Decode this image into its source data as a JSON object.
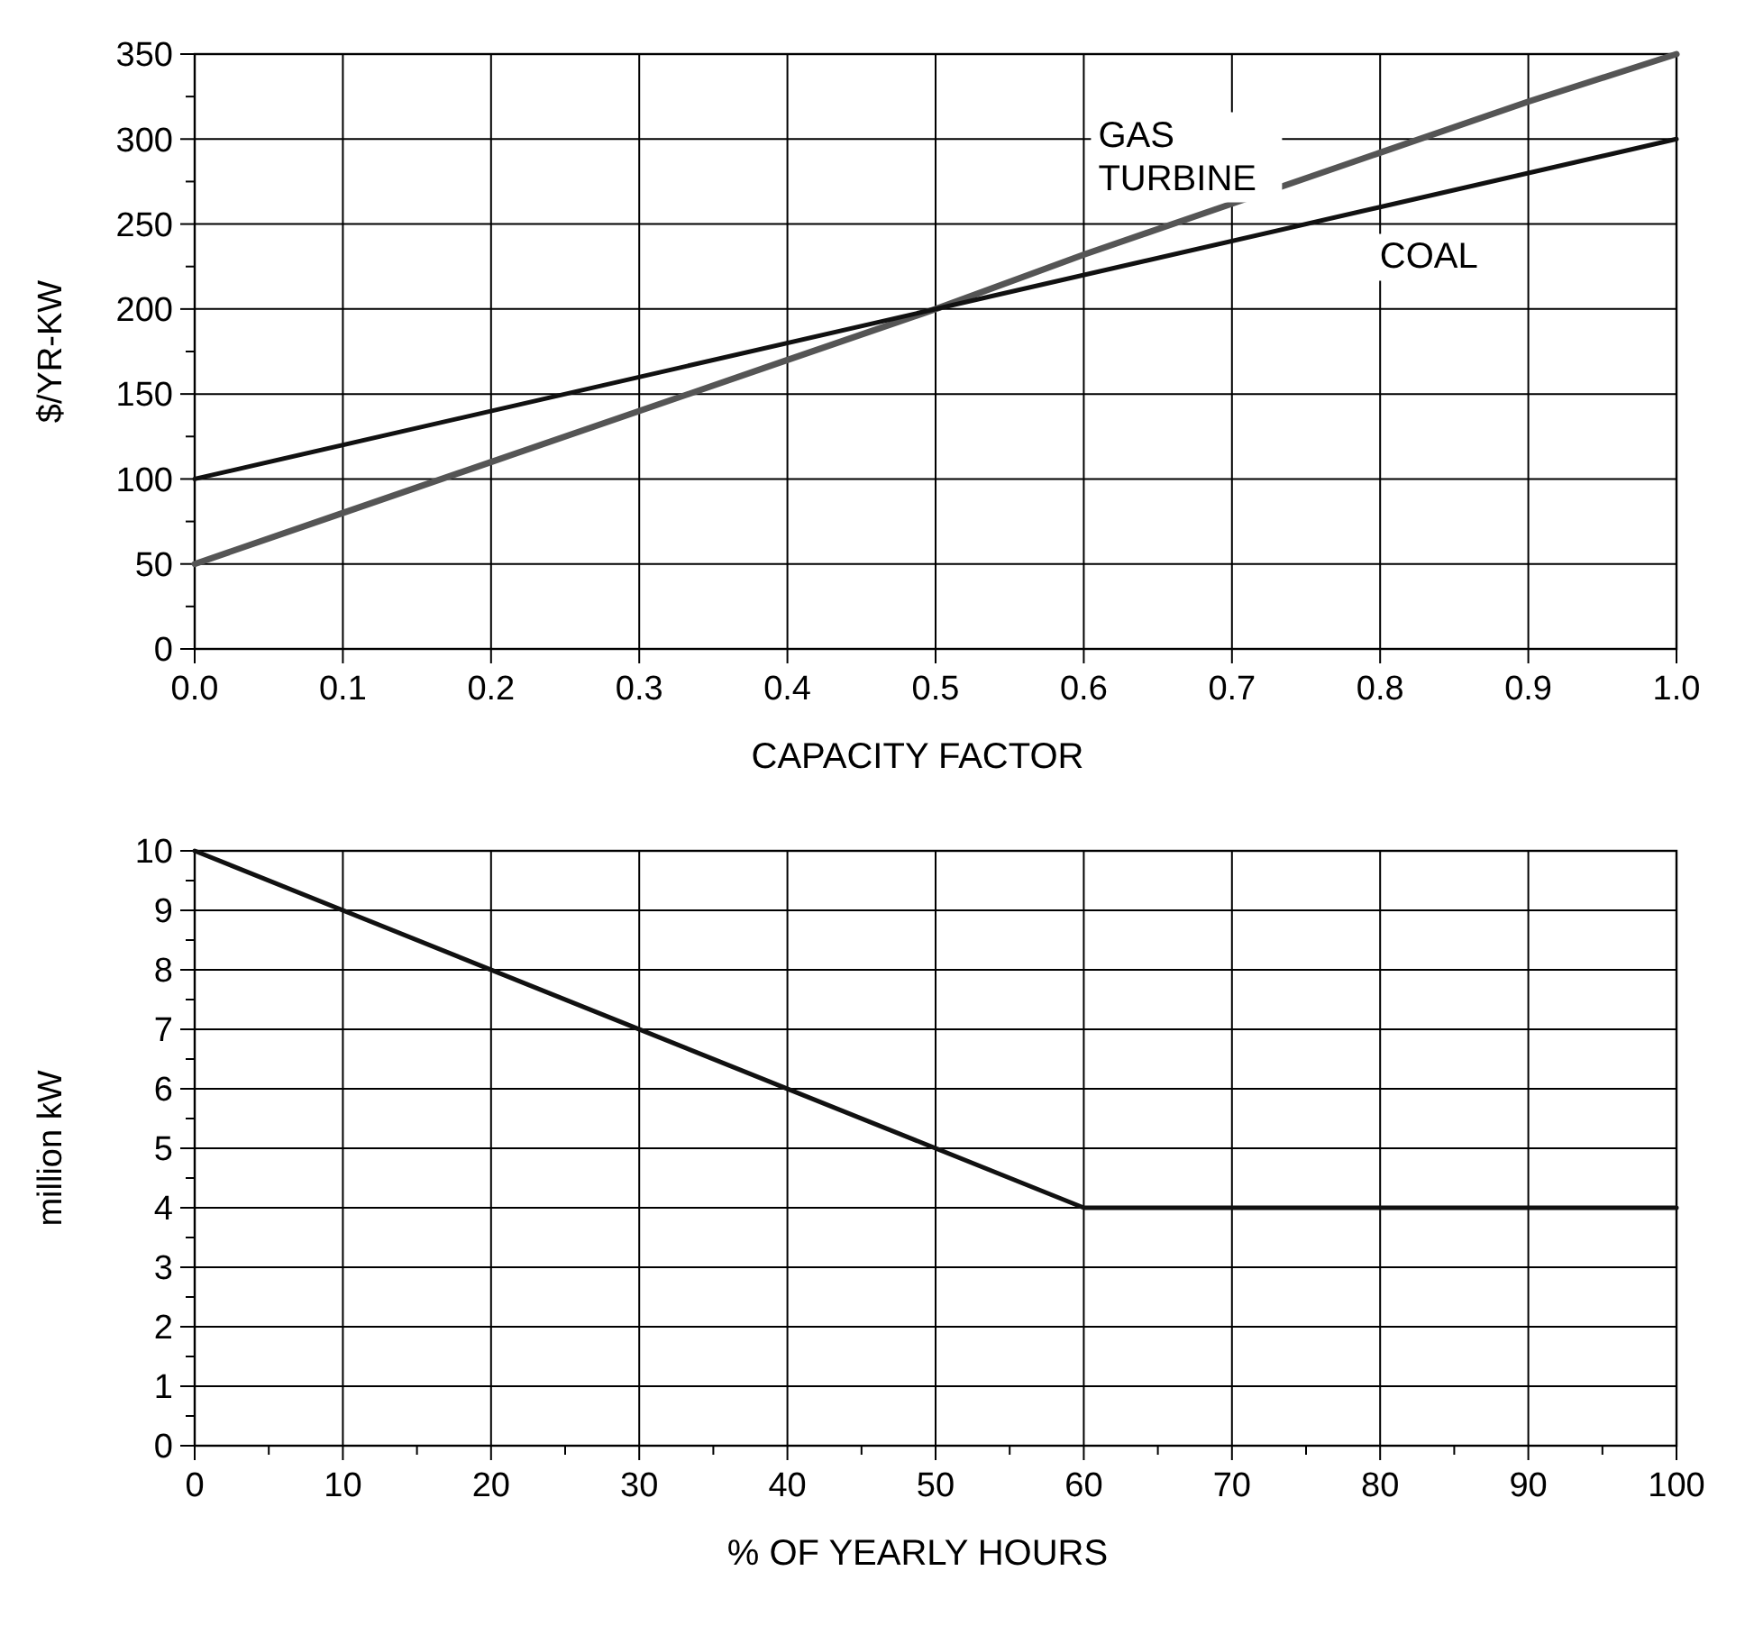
{
  "chart_data": [
    {
      "type": "line",
      "xlabel": "CAPACITY FACTOR",
      "ylabel": "$/YR-KW",
      "xlim": [
        0,
        1
      ],
      "ylim": [
        0,
        350
      ],
      "xticks": [
        {
          "value": 0,
          "label": "0.0"
        },
        {
          "value": 0.1,
          "label": "0.1"
        },
        {
          "value": 0.2,
          "label": "0.2"
        },
        {
          "value": 0.3,
          "label": "0.3"
        },
        {
          "value": 0.4,
          "label": "0.4"
        },
        {
          "value": 0.5,
          "label": "0.5"
        },
        {
          "value": 0.6,
          "label": "0.6"
        },
        {
          "value": 0.7,
          "label": "0.7"
        },
        {
          "value": 0.8,
          "label": "0.8"
        },
        {
          "value": 0.9,
          "label": "0.9"
        },
        {
          "value": 1,
          "label": "1.0"
        }
      ],
      "yticks": [
        0,
        {
          "value": 25,
          "label": null
        },
        50,
        {
          "value": 75,
          "label": null
        },
        100,
        {
          "value": 125,
          "label": null
        },
        150,
        {
          "value": 175,
          "label": null
        },
        200,
        {
          "value": 225,
          "label": null
        },
        250,
        {
          "value": 275,
          "label": null
        },
        300,
        {
          "value": 325,
          "label": null
        },
        350
      ],
      "grid": true,
      "series": [
        {
          "name": "GAS TURBINE",
          "color": "#555555",
          "x": [
            0,
            0.1,
            0.2,
            0.3,
            0.4,
            0.5,
            0.6,
            0.7,
            0.8,
            0.9,
            1
          ],
          "values": [
            50,
            80,
            110,
            140,
            170,
            200,
            232,
            262,
            292,
            322,
            350
          ]
        },
        {
          "name": "COAL",
          "color": "#111111",
          "x": [
            0,
            1
          ],
          "values": [
            100,
            300
          ]
        }
      ]
    },
    {
      "type": "line",
      "xlabel": "% OF YEARLY HOURS",
      "ylabel": "million kW",
      "xlim": [
        0,
        100
      ],
      "ylim": [
        0,
        10
      ],
      "xticks": [
        0,
        {
          "value": 5,
          "label": null
        },
        10,
        {
          "value": 15,
          "label": null
        },
        20,
        {
          "value": 25,
          "label": null
        },
        30,
        {
          "value": 35,
          "label": null
        },
        40,
        {
          "value": 45,
          "label": null
        },
        50,
        {
          "value": 55,
          "label": null
        },
        60,
        {
          "value": 65,
          "label": null
        },
        70,
        {
          "value": 75,
          "label": null
        },
        80,
        {
          "value": 85,
          "label": null
        },
        90,
        {
          "value": 95,
          "label": null
        },
        100
      ],
      "yticks": [
        0,
        {
          "value": 0.5,
          "label": null
        },
        1,
        {
          "value": 1.5,
          "label": null
        },
        2,
        {
          "value": 2.5,
          "label": null
        },
        3,
        {
          "value": 3.5,
          "label": null
        },
        4,
        {
          "value": 4.5,
          "label": null
        },
        5,
        {
          "value": 5.5,
          "label": null
        },
        6,
        {
          "value": 6.5,
          "label": null
        },
        7,
        {
          "value": 7.5,
          "label": null
        },
        8,
        {
          "value": 8.5,
          "label": null
        },
        9,
        {
          "value": 9.5,
          "label": null
        },
        10
      ],
      "grid": true,
      "series": [
        {
          "color": "#111111",
          "x": [
            0,
            60,
            100
          ],
          "values": [
            10,
            4,
            4
          ]
        }
      ]
    }
  ]
}
